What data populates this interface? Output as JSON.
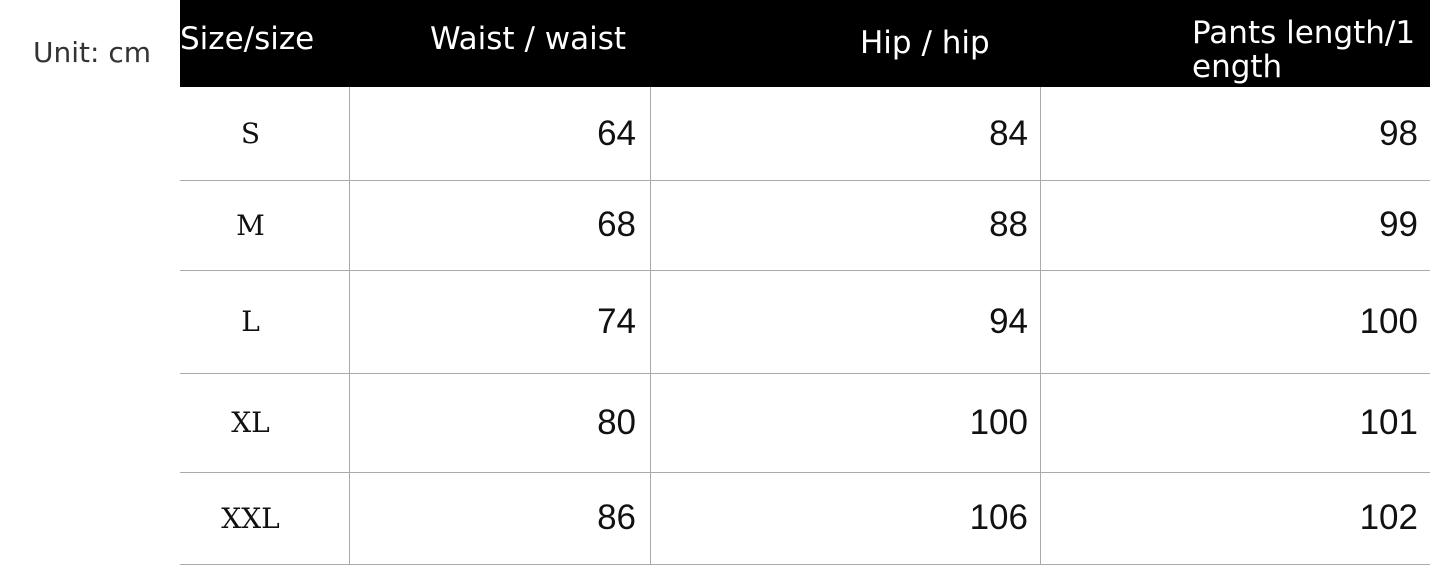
{
  "unit_label": "Unit: cm",
  "headers": [
    "Size/size",
    "Waist / waist",
    "Hip / hip",
    "Pants length/1\nength"
  ],
  "rows": [
    {
      "size": "S",
      "waist": "64",
      "hip": "84",
      "length": "98"
    },
    {
      "size": "M",
      "waist": "68",
      "hip": "88",
      "length": "99"
    },
    {
      "size": "L",
      "waist": "74",
      "hip": "94",
      "length": "100"
    },
    {
      "size": "XL",
      "waist": "80",
      "hip": "100",
      "length": "101"
    },
    {
      "size": "XXL",
      "waist": "86",
      "hip": "106",
      "length": "102"
    }
  ]
}
